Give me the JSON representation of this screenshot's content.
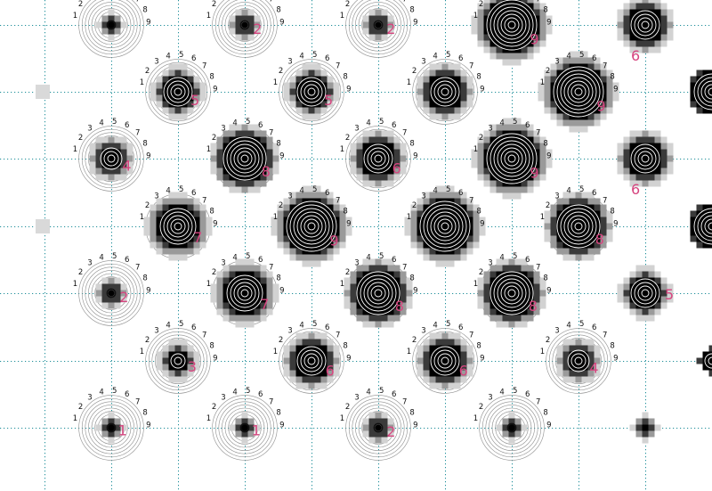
{
  "scale_numbers": [
    "1",
    "2",
    "3",
    "4",
    "5",
    "6",
    "7",
    "8",
    "9"
  ],
  "colors": {
    "grid": "#1f8f9a",
    "label": "#d6457f",
    "blob": "#000000"
  },
  "targets": [
    {
      "row": 0,
      "col": 0,
      "value": 1,
      "label": ""
    },
    {
      "row": 0,
      "col": 1,
      "value": 2,
      "label": "2"
    },
    {
      "row": 0,
      "col": 2,
      "value": 2,
      "label": "2"
    },
    {
      "row": 0,
      "col": 3,
      "value": 9,
      "label": "9"
    },
    {
      "row": 1,
      "col": 0,
      "value": 5,
      "label": "5"
    },
    {
      "row": 1,
      "col": 1,
      "value": 5,
      "label": "5"
    },
    {
      "row": 1,
      "col": 2,
      "value": 6,
      "label": ""
    },
    {
      "row": 1,
      "col": 3,
      "value": 9,
      "label": "9"
    },
    {
      "row": 2,
      "col": 0,
      "value": 4,
      "label": "4"
    },
    {
      "row": 2,
      "col": 1,
      "value": 8,
      "label": "8"
    },
    {
      "row": 2,
      "col": 2,
      "value": 6,
      "label": "6"
    },
    {
      "row": 2,
      "col": 3,
      "value": 9,
      "label": "9"
    },
    {
      "row": 3,
      "col": 0,
      "value": 7,
      "label": "7"
    },
    {
      "row": 3,
      "col": 1,
      "value": 9,
      "label": "9"
    },
    {
      "row": 3,
      "col": 2,
      "value": 9,
      "label": ""
    },
    {
      "row": 3,
      "col": 3,
      "value": 8,
      "label": "8"
    },
    {
      "row": 4,
      "col": 0,
      "value": 2,
      "label": "2"
    },
    {
      "row": 4,
      "col": 1,
      "value": 7,
      "label": "7"
    },
    {
      "row": 4,
      "col": 2,
      "value": 8,
      "label": "8"
    },
    {
      "row": 4,
      "col": 3,
      "value": 8,
      "label": "8"
    },
    {
      "row": 5,
      "col": 0,
      "value": 3,
      "label": "3"
    },
    {
      "row": 5,
      "col": 1,
      "value": 6,
      "label": "6"
    },
    {
      "row": 5,
      "col": 2,
      "value": 6,
      "label": "6"
    },
    {
      "row": 5,
      "col": 3,
      "value": 4,
      "label": "4"
    },
    {
      "row": 6,
      "col": 0,
      "value": 1,
      "label": "1"
    },
    {
      "row": 6,
      "col": 1,
      "value": 1,
      "label": "1"
    },
    {
      "row": 6,
      "col": 2,
      "value": 2,
      "label": "2"
    },
    {
      "row": 6,
      "col": 3,
      "value": 1,
      "label": ""
    }
  ],
  "edge_cells": [
    {
      "row": 0,
      "value": 6,
      "label": "6"
    },
    {
      "row": 2,
      "value": 6,
      "label": "6"
    },
    {
      "row": 4,
      "value": 5,
      "label": "5"
    },
    {
      "row": 6,
      "value": 1,
      "label": ""
    }
  ],
  "faint_cells": [
    {
      "row": 1,
      "side": "left"
    },
    {
      "row": 3,
      "side": "left"
    }
  ],
  "cut_cells": [
    {
      "row": 1,
      "value": 7
    },
    {
      "row": 3,
      "value": 7
    },
    {
      "row": 5,
      "value": 3
    }
  ]
}
